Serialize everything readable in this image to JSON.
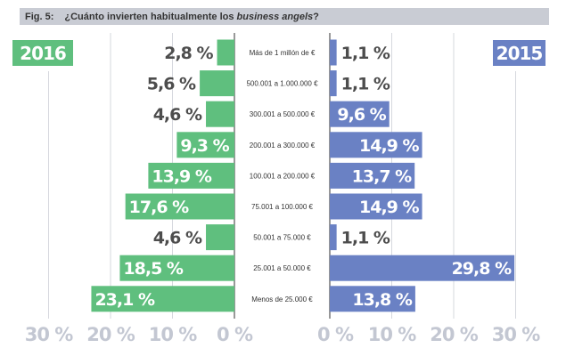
{
  "chart_data": {
    "type": "bar",
    "orientation": "horizontal-butterfly",
    "figure_label": "Fig. 5:",
    "title_prefix": "¿Cuánto invierten habitualmente los ",
    "title_italic": "business angels",
    "title_suffix": "?",
    "categories": [
      "Más de 1 millón de €",
      "500.001 a 1.000.000 €",
      "300.001 a 500.000 €",
      "200.001 a 300.000 €",
      "100.001 a 200.000 €",
      "75.001 a 100.000 €",
      "50.001 a 75.000 €",
      "25.001 a 50.000 €",
      "Menos de 25.000 €"
    ],
    "series": [
      {
        "name": "2016",
        "side": "left",
        "color": "#5fbf7e",
        "values": [
          2.8,
          5.6,
          4.6,
          9.3,
          13.9,
          17.6,
          4.6,
          18.5,
          23.1
        ],
        "labels": [
          "2,8 %",
          "5,6 %",
          "4,6 %",
          "9,3 %",
          "13,9 %",
          "17,6 %",
          "4,6 %",
          "18,5 %",
          "23,1 %"
        ]
      },
      {
        "name": "2015",
        "side": "right",
        "color": "#6a81c4",
        "values": [
          1.1,
          1.1,
          9.6,
          14.9,
          13.7,
          14.9,
          1.1,
          29.8,
          13.8
        ],
        "labels": [
          "1,1 %",
          "1,1 %",
          "9,6 %",
          "14,9 %",
          "13,7 %",
          "14,9 %",
          "1,1 %",
          "29,8 %",
          "13,8 %"
        ]
      }
    ],
    "xlim": [
      0,
      30
    ],
    "ticks": [
      0,
      10,
      20,
      30
    ],
    "tick_labels": [
      "0 %",
      "10 %",
      "20 %",
      "30 %"
    ],
    "grid": true,
    "header_color": "#c9ccd4",
    "outside_label_color": "#4d4d4d",
    "tick_color": "#c3c7d2"
  }
}
